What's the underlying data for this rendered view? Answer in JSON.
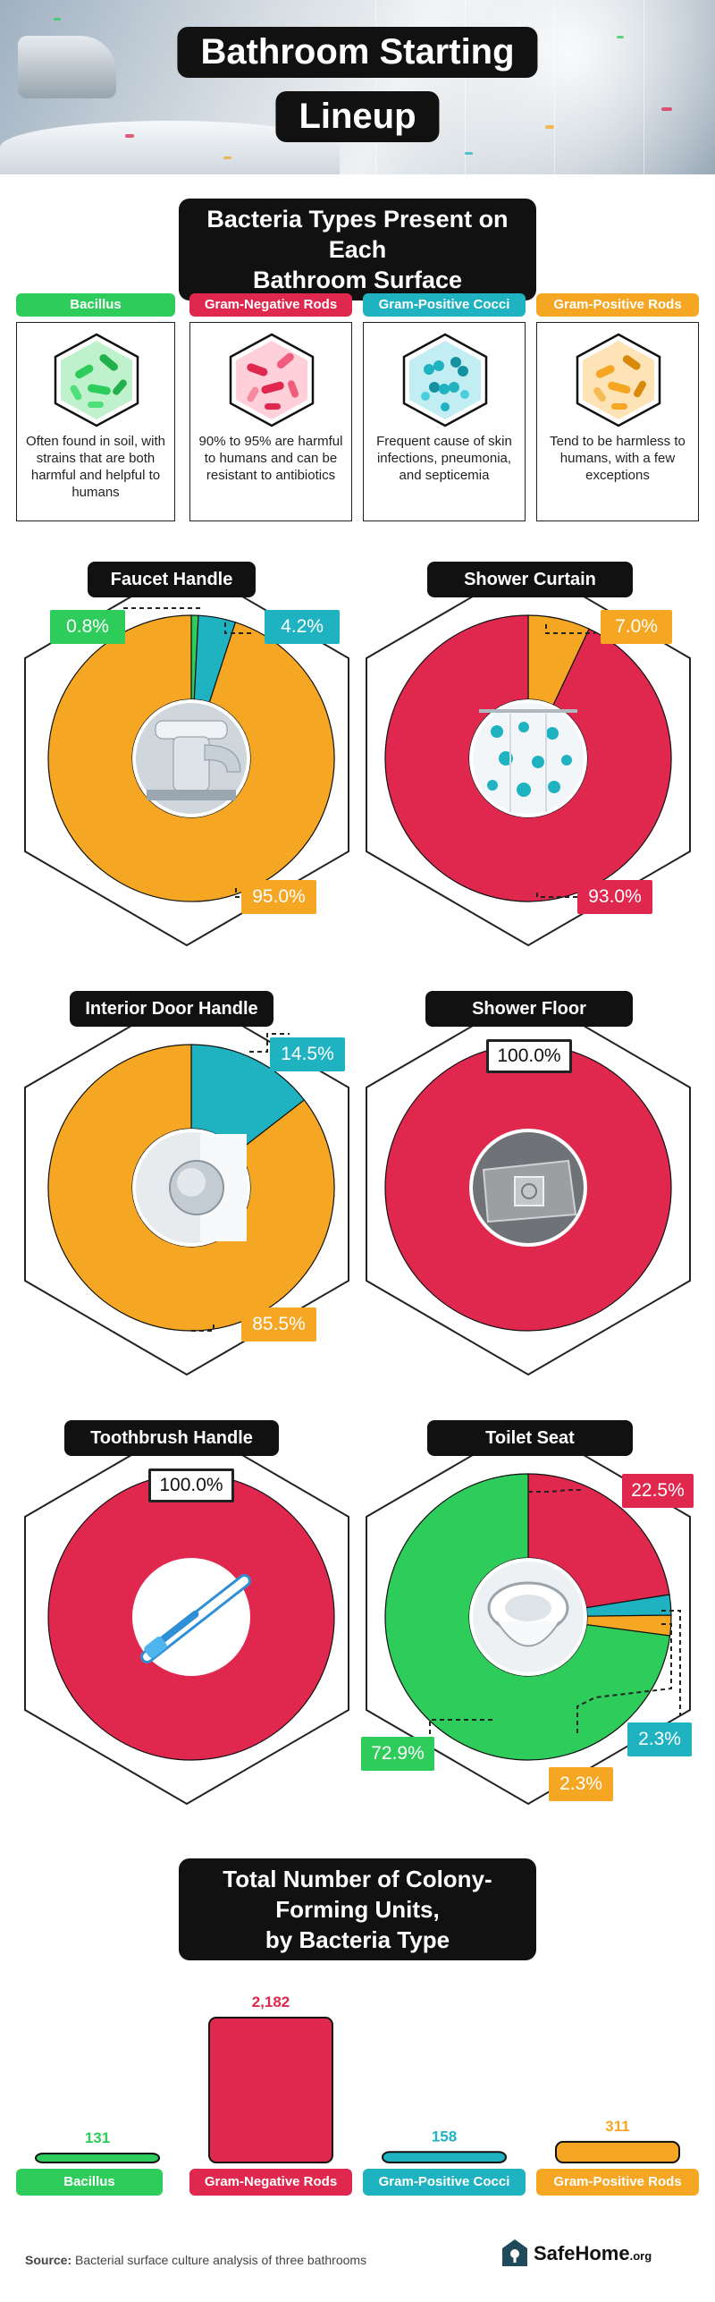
{
  "header": {
    "title_line1": "Bathroom Starting",
    "title_line2": "Lineup"
  },
  "section1": {
    "title_line1": "Bacteria Types Present on Each",
    "title_line2": "Bathroom Surface"
  },
  "colors": {
    "bacillus": "#2ecc5a",
    "gram_negative_rods": "#e0284f",
    "gram_positive_cocci": "#1fb3c2",
    "gram_positive_rods": "#f5a623"
  },
  "legend": [
    {
      "key": "bacillus",
      "label": "Bacillus",
      "description": "Often found in soil, with strains that are both harmful and helpful to humans"
    },
    {
      "key": "gram_negative_rods",
      "label": "Gram-Negative Rods",
      "description": "90% to 95% are harmful to humans and can be resistant to antibiotics"
    },
    {
      "key": "gram_positive_cocci",
      "label": "Gram-Positive Cocci",
      "description": "Frequent cause of skin infections, pneumonia, and septicemia"
    },
    {
      "key": "gram_positive_rods",
      "label": "Gram-Positive Rods",
      "description": "Tend to be harmless to humans, with a few exceptions"
    }
  ],
  "chart_data": [
    {
      "type": "pie",
      "title": "Faucet Handle",
      "icon": "faucet-icon",
      "slices": [
        {
          "series": "Bacillus",
          "key": "bacillus",
          "value": 0.8,
          "label": "0.8%"
        },
        {
          "series": "Gram-Positive Cocci",
          "key": "gram_positive_cocci",
          "value": 4.2,
          "label": "4.2%"
        },
        {
          "series": "Gram-Positive Rods",
          "key": "gram_positive_rods",
          "value": 95.0,
          "label": "95.0%"
        }
      ]
    },
    {
      "type": "pie",
      "title": "Shower Curtain",
      "icon": "shower-curtain-icon",
      "slices": [
        {
          "series": "Gram-Positive Rods",
          "key": "gram_positive_rods",
          "value": 7.0,
          "label": "7.0%"
        },
        {
          "series": "Gram-Negative Rods",
          "key": "gram_negative_rods",
          "value": 93.0,
          "label": "93.0%"
        }
      ]
    },
    {
      "type": "pie",
      "title": "Interior Door Handle",
      "icon": "door-knob-icon",
      "slices": [
        {
          "series": "Gram-Positive Cocci",
          "key": "gram_positive_cocci",
          "value": 14.5,
          "label": "14.5%"
        },
        {
          "series": "Gram-Positive Rods",
          "key": "gram_positive_rods",
          "value": 85.5,
          "label": "85.5%"
        }
      ]
    },
    {
      "type": "pie",
      "title": "Shower Floor",
      "icon": "shower-drain-icon",
      "slices": [
        {
          "series": "Gram-Negative Rods",
          "key": "gram_negative_rods",
          "value": 100.0,
          "label": "100.0%"
        }
      ]
    },
    {
      "type": "pie",
      "title": "Toothbrush Handle",
      "icon": "toothbrush-icon",
      "slices": [
        {
          "series": "Gram-Negative Rods",
          "key": "gram_negative_rods",
          "value": 100.0,
          "label": "100.0%"
        }
      ]
    },
    {
      "type": "pie",
      "title": "Toilet Seat",
      "icon": "toilet-icon",
      "slices": [
        {
          "series": "Gram-Negative Rods",
          "key": "gram_negative_rods",
          "value": 22.5,
          "label": "22.5%"
        },
        {
          "series": "Gram-Positive Cocci",
          "key": "gram_positive_cocci",
          "value": 2.3,
          "label": "2.3%"
        },
        {
          "series": "Gram-Positive Rods",
          "key": "gram_positive_rods",
          "value": 2.3,
          "label": "2.3%"
        },
        {
          "series": "Bacillus",
          "key": "bacillus",
          "value": 72.9,
          "label": "72.9%"
        }
      ]
    },
    {
      "type": "bar",
      "title": "Total Number of Colony-Forming Units, by Bacteria Type",
      "categories": [
        "Bacillus",
        "Gram-Negative Rods",
        "Gram-Positive Cocci",
        "Gram-Positive Rods"
      ],
      "values": [
        131,
        2182,
        158,
        311
      ],
      "value_labels": [
        "131",
        "2,182",
        "158",
        "311"
      ],
      "keys": [
        "bacillus",
        "gram_negative_rods",
        "gram_positive_cocci",
        "gram_positive_rods"
      ]
    }
  ],
  "section2": {
    "title_line1": "Total Number of Colony-Forming Units,",
    "title_line2": "by Bacteria Type"
  },
  "footer": {
    "source_label": "Source:",
    "source_text": "Bacterial surface culture analysis of three bathrooms",
    "brand": "SafeHome",
    "brand_suffix": ".org"
  }
}
